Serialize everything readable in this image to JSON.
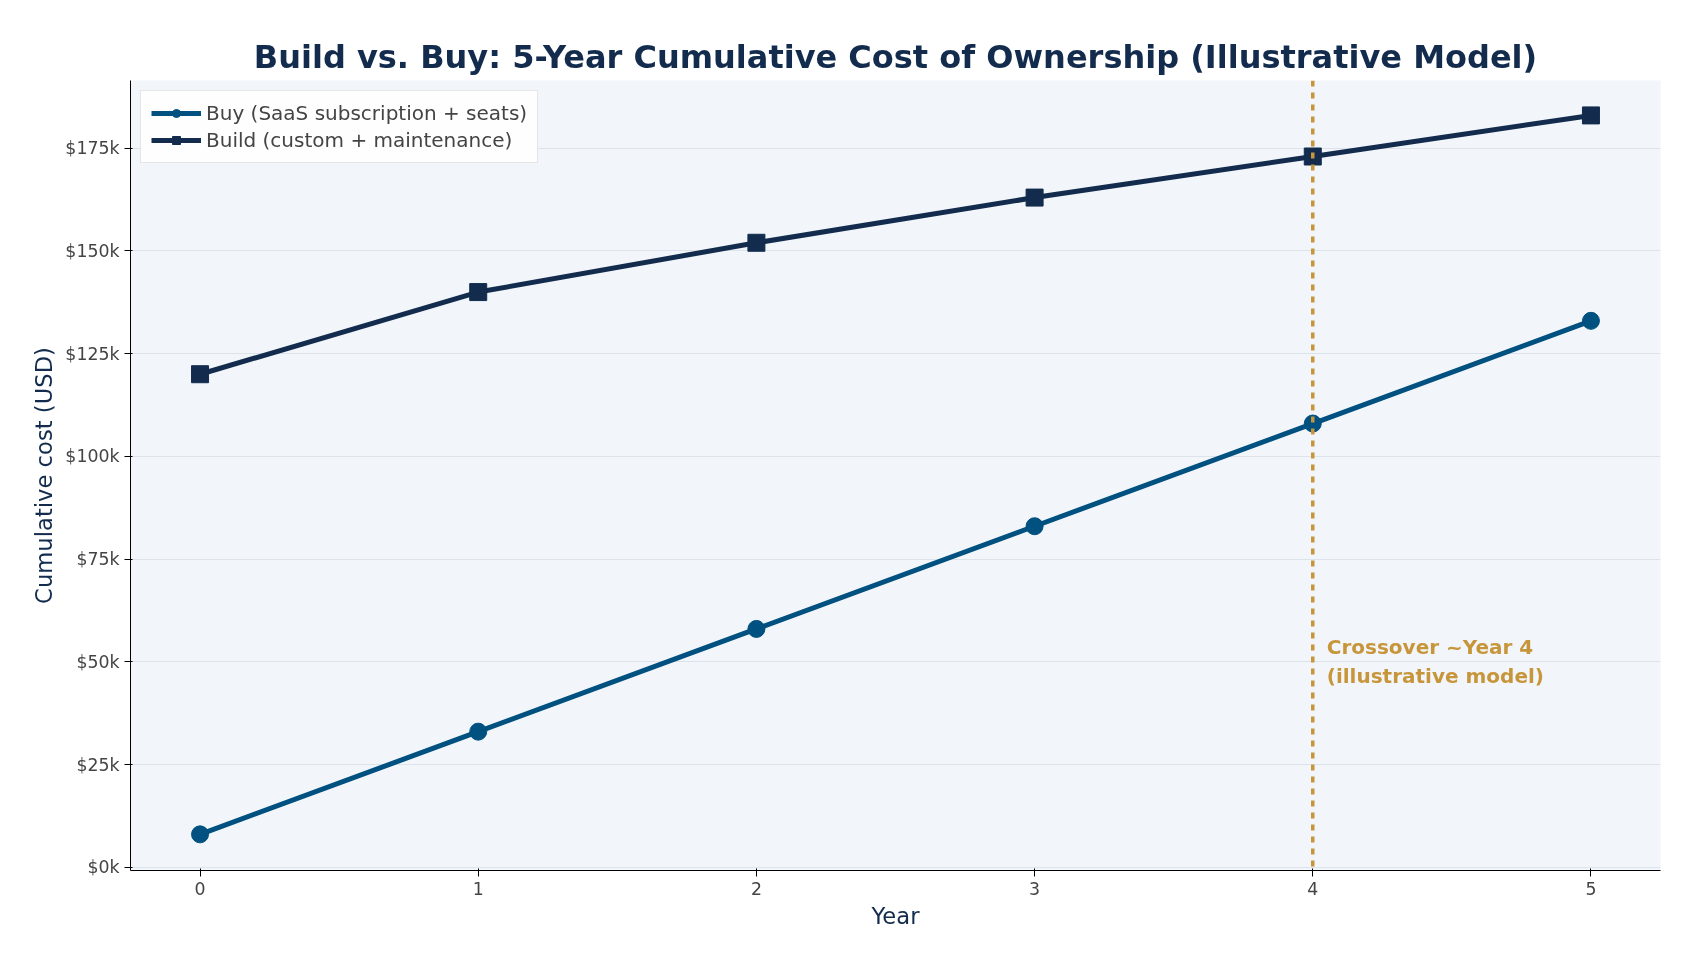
{
  "chart_data": {
    "type": "line",
    "title": "Build vs. Buy: 5-Year Cumulative Cost of Ownership (Illustrative Model)",
    "xlabel": "Year",
    "ylabel": "Cumulative cost (USD)",
    "x": [
      0,
      1,
      2,
      3,
      4,
      5
    ],
    "series": [
      {
        "name": "Buy (SaaS subscription + seats)",
        "color": "#005080",
        "marker": "circle",
        "values": [
          8000,
          33000,
          58000,
          83000,
          108000,
          133000
        ]
      },
      {
        "name": "Build (custom + maintenance)",
        "color": "#132c4e",
        "marker": "square",
        "values": [
          120000,
          140000,
          152000,
          163000,
          173000,
          183000
        ]
      }
    ],
    "xlim": [
      -0.25,
      5.25
    ],
    "xticks": [
      0,
      1,
      2,
      3,
      4,
      5
    ],
    "ylim": [
      -800,
      191500
    ],
    "yticks": [
      {
        "value": 0,
        "label": "$0k"
      },
      {
        "value": 25000,
        "label": "$25k"
      },
      {
        "value": 50000,
        "label": "$50k"
      },
      {
        "value": 75000,
        "label": "$75k"
      },
      {
        "value": 100000,
        "label": "$100k"
      },
      {
        "value": 125000,
        "label": "$125k"
      },
      {
        "value": 150000,
        "label": "$150k"
      },
      {
        "value": 175000,
        "label": "$175k"
      }
    ],
    "ref_lines": [
      {
        "axis": "x",
        "value": 4,
        "color": "#c8963a",
        "line_style": "dashed"
      }
    ],
    "annotations": [
      {
        "text": "Crossover ~Year 4\n(illustrative model)",
        "x": 4,
        "y": 50000
      }
    ],
    "grid": "y",
    "legend": "top left",
    "line_style": "solid"
  }
}
